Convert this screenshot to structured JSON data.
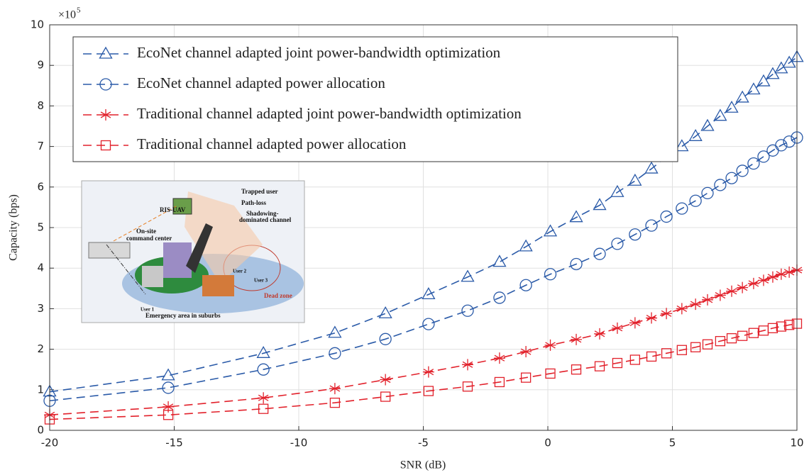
{
  "chart_data": {
    "type": "line",
    "xlabel": "SNR (dB)",
    "ylabel": "Capacity (bps)",
    "y_multiplier": "×10",
    "y_multiplier_exponent": "5",
    "x": [
      -20,
      -15.24,
      -11.42,
      -8.55,
      -6.52,
      -4.79,
      -3.22,
      -1.94,
      -0.88,
      0.1,
      1.14,
      2.08,
      2.79,
      3.5,
      4.16,
      4.76,
      5.38,
      5.93,
      6.41,
      6.92,
      7.38,
      7.81,
      8.26,
      8.66,
      9.03,
      9.37,
      9.69,
      10
    ],
    "series": [
      {
        "name": "EcoNet channel adapted joint power-bandwidth optimization",
        "color": "#2a5aa8",
        "marker": "triangle",
        "values": [
          0.95,
          1.35,
          1.9,
          2.4,
          2.88,
          3.35,
          3.78,
          4.15,
          4.53,
          4.9,
          5.25,
          5.55,
          5.87,
          6.15,
          6.45,
          6.75,
          7.0,
          7.25,
          7.5,
          7.75,
          7.95,
          8.2,
          8.4,
          8.6,
          8.78,
          8.92,
          9.06,
          9.2
        ]
      },
      {
        "name": "EcoNet channel adapted power allocation",
        "color": "#2a5aa8",
        "marker": "circle",
        "values": [
          0.73,
          1.05,
          1.5,
          1.9,
          2.25,
          2.62,
          2.95,
          3.27,
          3.58,
          3.85,
          4.1,
          4.35,
          4.6,
          4.83,
          5.05,
          5.27,
          5.47,
          5.66,
          5.85,
          6.05,
          6.22,
          6.4,
          6.58,
          6.75,
          6.9,
          7.03,
          7.12,
          7.22
        ]
      },
      {
        "name": "Traditional channel adapted joint power-bandwidth optimization",
        "color": "#e2212b",
        "marker": "asterisk",
        "values": [
          0.38,
          0.58,
          0.8,
          1.03,
          1.25,
          1.44,
          1.62,
          1.78,
          1.94,
          2.1,
          2.24,
          2.38,
          2.52,
          2.65,
          2.77,
          2.88,
          3.0,
          3.11,
          3.22,
          3.33,
          3.43,
          3.52,
          3.62,
          3.7,
          3.78,
          3.85,
          3.9,
          3.95
        ]
      },
      {
        "name": "Traditional channel adapted power allocation",
        "color": "#e2212b",
        "marker": "square",
        "values": [
          0.27,
          0.38,
          0.53,
          0.68,
          0.83,
          0.97,
          1.08,
          1.19,
          1.3,
          1.4,
          1.5,
          1.58,
          1.66,
          1.74,
          1.82,
          1.9,
          1.98,
          2.05,
          2.12,
          2.2,
          2.27,
          2.33,
          2.4,
          2.46,
          2.52,
          2.56,
          2.6,
          2.63
        ]
      }
    ],
    "xlim": [
      -20,
      10
    ],
    "xticks": [
      -20,
      -15,
      -10,
      -5,
      0,
      5,
      10
    ],
    "ylim": [
      0,
      10
    ],
    "yticks": [
      0,
      1,
      2,
      3,
      4,
      5,
      6,
      7,
      8,
      9,
      10
    ],
    "grid": true,
    "legend": "upper left",
    "inset": {
      "ris_uav": "RIS-UAV",
      "trapped_user": "Trapped user",
      "path_loss": "Path-loss",
      "shadowing_1": "Shadowing-",
      "shadowing_2": "dominated channel",
      "command_1": "On-site",
      "command_2": "command center",
      "user1": "User 1",
      "user2": "User 2",
      "user3": "User 3",
      "dead_zone": "Dead zone",
      "area": "Emergency area in suburbs"
    }
  }
}
